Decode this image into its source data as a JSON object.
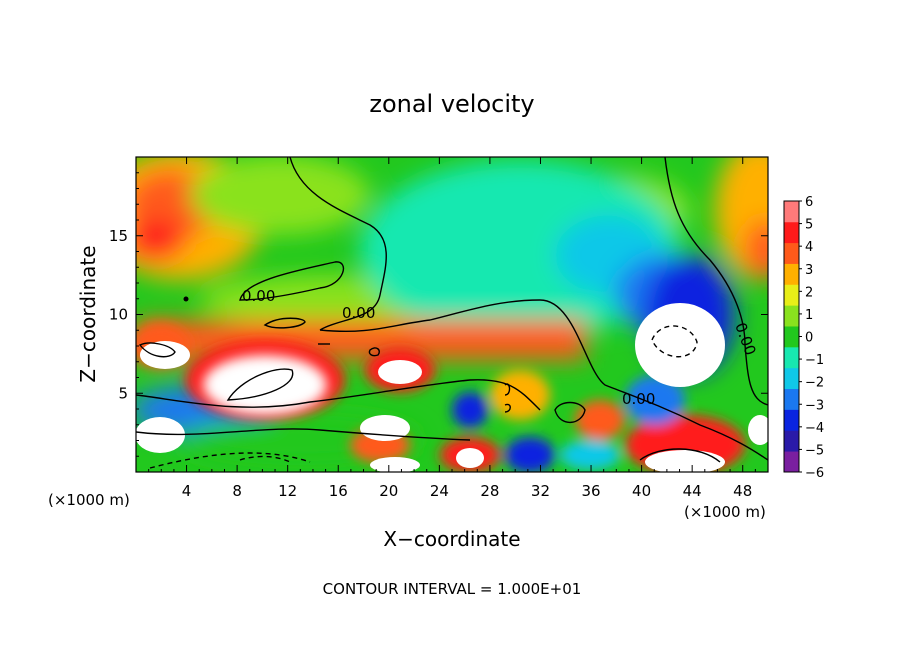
{
  "chart_data": {
    "type": "heatmap",
    "title": "zonal velocity",
    "xlabel": "X−coordinate",
    "ylabel": "Z−coordinate",
    "x_unit_left": "(×1000 m)",
    "x_unit_right": "(×1000 m)",
    "footer": "CONTOUR INTERVAL = 1.000E+01",
    "xlim": [
      0,
      50
    ],
    "ylim": [
      0,
      20
    ],
    "x_ticks": [
      4,
      8,
      12,
      16,
      20,
      24,
      28,
      32,
      36,
      40,
      44,
      48
    ],
    "x_tick_labels": [
      "4",
      "8",
      "12",
      "16",
      "20",
      "24",
      "28",
      "32",
      "36",
      "40",
      "44",
      "48"
    ],
    "y_ticks": [
      5,
      10,
      15
    ],
    "y_tick_labels": [
      "5",
      "10",
      "15"
    ],
    "colorbar": {
      "levels": [
        -6,
        -5,
        -4,
        -3,
        -2,
        -1,
        0,
        1,
        2,
        3,
        4,
        5,
        6
      ],
      "labels": [
        "−6",
        "−5",
        "−4",
        "−3",
        "−2",
        "−1",
        "0",
        "1",
        "2",
        "3",
        "4",
        "5",
        "6"
      ],
      "colors": [
        "#7a1fa0",
        "#2a1aa8",
        "#0a24e0",
        "#1a78f0",
        "#10c8e8",
        "#18e8b0",
        "#22c81e",
        "#8ae21e",
        "#e8ee18",
        "#ffb000",
        "#ff5a1a",
        "#ff1a1a",
        "#ff7a7a"
      ]
    },
    "contour_labels": [
      "0.00",
      "0.00",
      "0.00",
      "0.00"
    ],
    "grid": false
  }
}
